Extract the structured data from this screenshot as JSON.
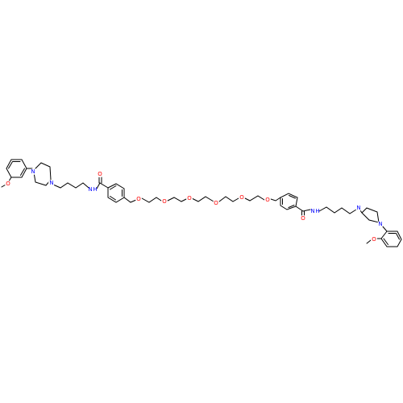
{
  "molecule": {
    "colors": {
      "bond": "#000000",
      "oxygen": "#ff0000",
      "nitrogen": "#0000ff",
      "background": "#ffffff"
    },
    "left_unit": {
      "methoxy_O": "O",
      "piperazine_N1": "N",
      "piperazine_N2": "N",
      "amide_N": "N",
      "amide_H": "H",
      "carbonyl_O": "O"
    },
    "peg_chain": [
      "O",
      "O",
      "O",
      "O",
      "O",
      "O"
    ],
    "right_unit": {
      "amide_N": "N",
      "amide_H": "H",
      "carbonyl_O": "O",
      "piperazine_N1": "N",
      "piperazine_N2": "N",
      "methoxy_O": "O"
    }
  }
}
